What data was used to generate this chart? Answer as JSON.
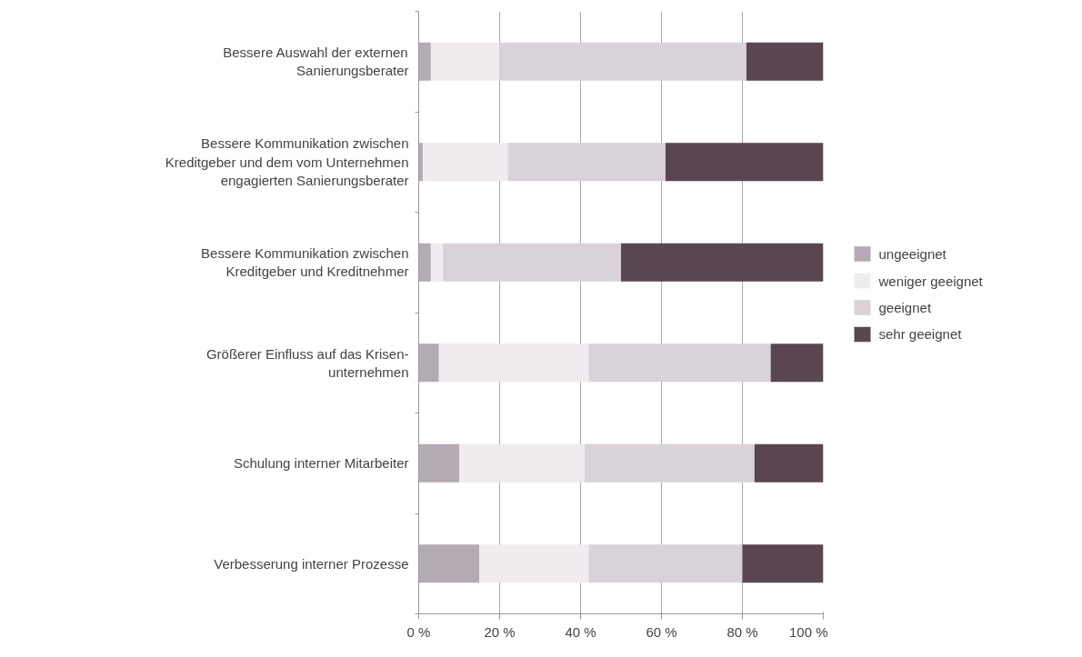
{
  "chart_data": {
    "type": "bar",
    "orientation": "horizontal",
    "stacked": true,
    "categories": [
      "Bessere Auswahl der externen Sanierungsberater",
      "Bessere Kommunikation zwischen Kreditgeber und dem vom Unternehmen engagierten Sanierungsberater",
      "Bessere Kommunikation zwischen Kreditgeber und Kreditnehmer",
      "Größerer Einfluss auf das Krisen-unternehmen",
      "Schulung interner Mitarbeiter",
      "Verbesserung interner Prozesse"
    ],
    "series": [
      {
        "name": "ungeeignet",
        "color": "#b3aab3",
        "values": [
          3,
          1,
          3,
          5,
          10,
          15
        ]
      },
      {
        "name": "weniger geeignet",
        "color": "#efebef",
        "values": [
          17,
          21,
          3,
          37,
          31,
          27
        ]
      },
      {
        "name": "geeignet",
        "color": "#d9d2d9",
        "values": [
          61,
          39,
          44,
          45,
          42,
          38
        ]
      },
      {
        "name": "sehr geeignet",
        "color": "#5a4650",
        "values": [
          19,
          39,
          50,
          13,
          17,
          20
        ]
      }
    ],
    "xlim": [
      0,
      100
    ],
    "xticks": [
      {
        "value": 0,
        "label": "0 %"
      },
      {
        "value": 20,
        "label": "20 %"
      },
      {
        "value": 40,
        "label": "40 %"
      },
      {
        "value": 60,
        "label": "60 %"
      },
      {
        "value": 80,
        "label": "80 %"
      },
      {
        "value": 100,
        "label": "100 %"
      }
    ],
    "grid": "x",
    "legend": "right"
  }
}
